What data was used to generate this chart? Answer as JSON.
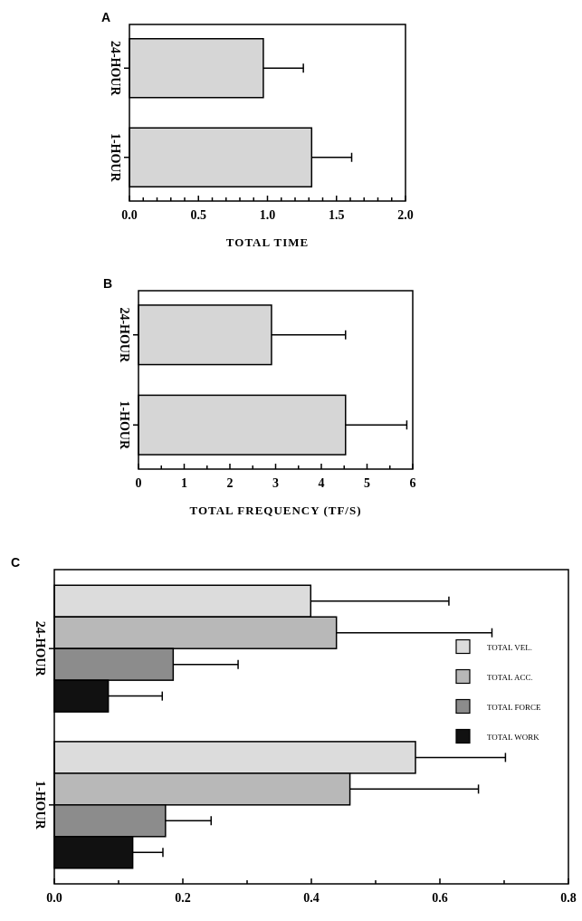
{
  "chart_data": [
    {
      "type": "bar",
      "title": "A",
      "orientation": "horizontal",
      "categories": [
        "24-HOUR",
        "1-HOUR"
      ],
      "values": [
        0.97,
        1.32
      ],
      "errors": [
        [
          0.97,
          1.26
        ],
        [
          1.32,
          1.61
        ]
      ],
      "color": "#d6d6d6",
      "xlabel": "TOTAL TIME",
      "xlim": [
        0,
        2
      ],
      "xticks": [
        {
          "value": 0,
          "label": "0.0"
        },
        {
          "value": 0.1,
          "label": null
        },
        {
          "value": 0.2,
          "label": null
        },
        {
          "value": 0.3,
          "label": null
        },
        {
          "value": 0.4,
          "label": null
        },
        {
          "value": 0.5,
          "label": "0.5"
        },
        {
          "value": 0.6,
          "label": null
        },
        {
          "value": 0.7,
          "label": null
        },
        {
          "value": 0.8,
          "label": null
        },
        {
          "value": 0.9,
          "label": null
        },
        {
          "value": 1,
          "label": "1.0"
        },
        {
          "value": 1.1,
          "label": null
        },
        {
          "value": 1.2,
          "label": null
        },
        {
          "value": 1.3,
          "label": null
        },
        {
          "value": 1.4,
          "label": null
        },
        {
          "value": 1.5,
          "label": "1.5"
        },
        {
          "value": 1.6,
          "label": null
        },
        {
          "value": 1.7,
          "label": null
        },
        {
          "value": 1.8,
          "label": null
        },
        {
          "value": 1.9,
          "label": null
        },
        {
          "value": 2,
          "label": "2.0"
        }
      ],
      "grid": false,
      "legend": false
    },
    {
      "type": "bar",
      "title": "B",
      "orientation": "horizontal",
      "categories": [
        "24-HOUR",
        "1-HOUR"
      ],
      "values": [
        2.91,
        4.53
      ],
      "errors": [
        [
          2.91,
          4.53
        ],
        [
          4.53,
          5.87
        ]
      ],
      "color": "#d6d6d6",
      "xlabel": "TOTAL FREQUENCY (TF/S)",
      "xlim": [
        0,
        6
      ],
      "xticks": [
        0,
        {
          "value": 0.5,
          "label": null
        },
        1,
        {
          "value": 1.5,
          "label": null
        },
        2,
        {
          "value": 2.5,
          "label": null
        },
        3,
        {
          "value": 3.5,
          "label": null
        },
        4,
        {
          "value": 4.5,
          "label": null
        },
        5,
        {
          "value": 5.5,
          "label": null
        },
        6
      ],
      "grid": false,
      "legend": false
    },
    {
      "type": "bar",
      "title": "C",
      "orientation": "horizontal",
      "categories": [
        "24-HOUR",
        "1-HOUR"
      ],
      "xlim": [
        0,
        0.8
      ],
      "xticks": [
        {
          "value": 0,
          "label": "0.0"
        },
        {
          "value": 0.1,
          "label": null
        },
        {
          "value": 0.2,
          "label": "0.2"
        },
        {
          "value": 0.3,
          "label": null
        },
        {
          "value": 0.4,
          "label": "0.4"
        },
        {
          "value": 0.5,
          "label": null
        },
        {
          "value": 0.6,
          "label": "0.6"
        },
        {
          "value": 0.7,
          "label": null
        },
        {
          "value": 0.8,
          "label": "0.8"
        }
      ],
      "grid": false,
      "legend": "right",
      "series": [
        {
          "name": "TOTAL VEL.",
          "color": "#dcdcdc",
          "values": [
            0.399,
            0.562
          ],
          "errors": [
            [
              0.399,
              0.614
            ],
            [
              0.562,
              0.702
            ]
          ]
        },
        {
          "name": "TOTAL ACC.",
          "color": "#b8b8b8",
          "values": [
            0.439,
            0.46
          ],
          "errors": [
            [
              0.439,
              0.681
            ],
            [
              0.46,
              0.66
            ]
          ]
        },
        {
          "name": "TOTAL FORCE",
          "color": "#8c8c8c",
          "values": [
            0.185,
            0.173
          ],
          "errors": [
            [
              0.185,
              0.286
            ],
            [
              0.173,
              0.244
            ]
          ]
        },
        {
          "name": "TOTAL WORK",
          "color": "#111111",
          "values": [
            0.084,
            0.122
          ],
          "errors": [
            [
              0.084,
              0.168
            ],
            [
              0.122,
              0.169
            ]
          ]
        }
      ]
    }
  ]
}
